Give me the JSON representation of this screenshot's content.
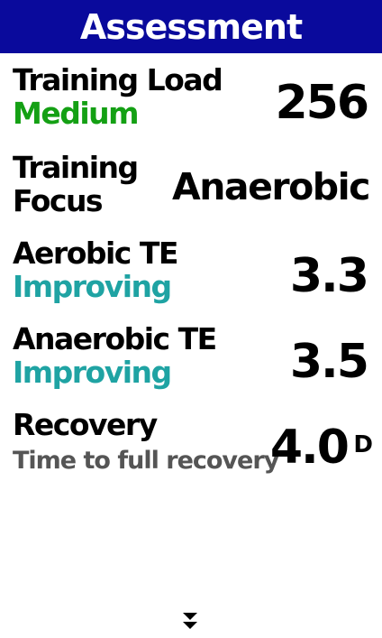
{
  "header": {
    "title": "Assessment"
  },
  "rows": [
    {
      "label": "Training Load",
      "status": "Medium",
      "value": "256"
    },
    {
      "label": "Training Focus",
      "value": "Anaerobic"
    },
    {
      "label": "Aerobic TE",
      "status": "Improving",
      "value": "3.3"
    },
    {
      "label": "Anaerobic TE",
      "status": "Improving",
      "value": "3.5"
    },
    {
      "label": "Recovery",
      "status": "Time to full recovery",
      "value": "4.0",
      "unit": "D"
    }
  ]
}
